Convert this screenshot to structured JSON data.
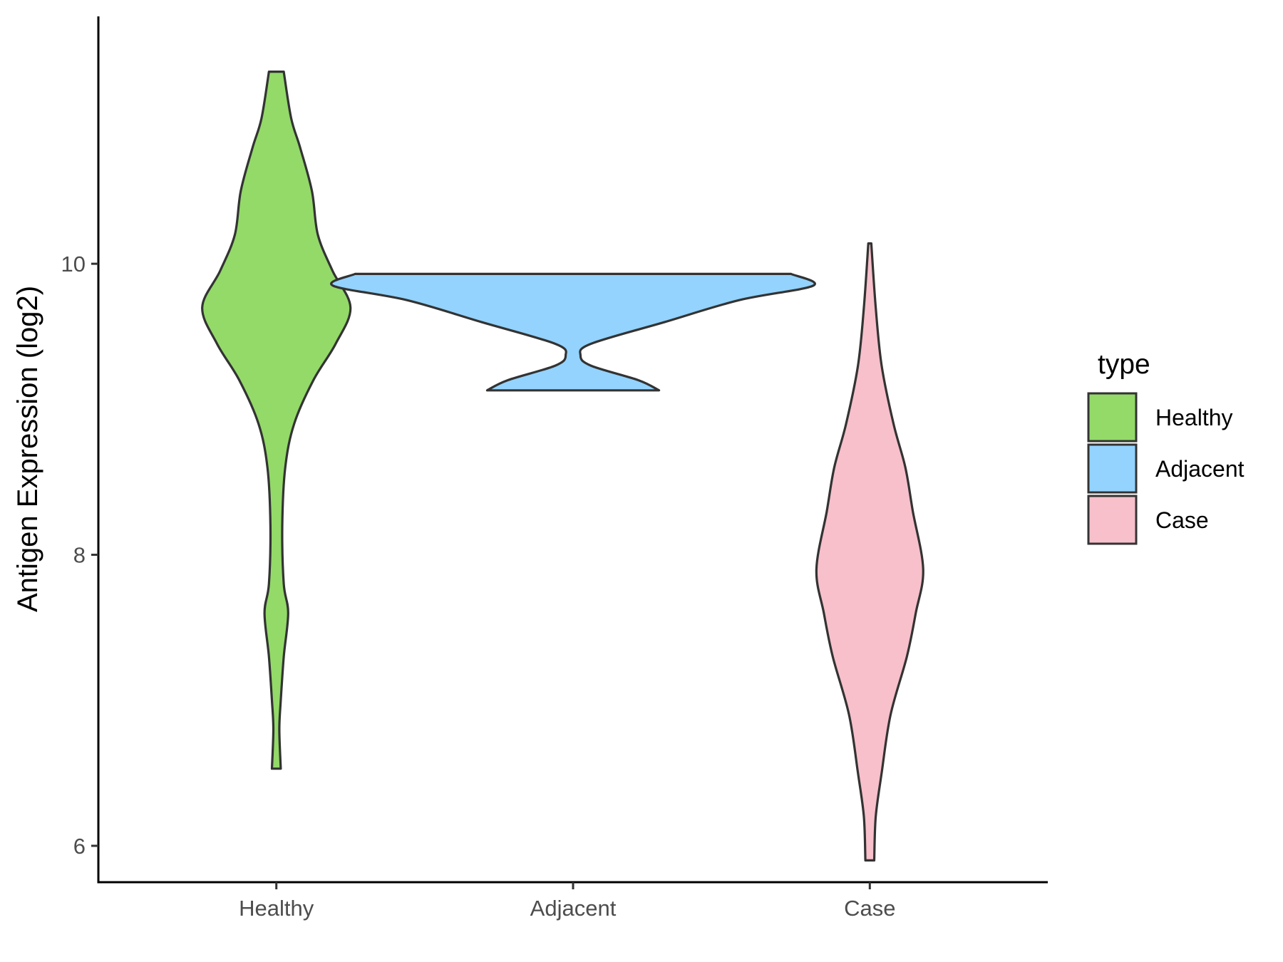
{
  "chart_data": {
    "type": "violin",
    "title": "",
    "xlabel": "",
    "ylabel": "Antigen Expression (log2)",
    "ylim": [
      5.75,
      11.7
    ],
    "yticks": [
      6,
      8,
      10
    ],
    "categories": [
      "Healthy",
      "Adjacent",
      "Case"
    ],
    "legend": {
      "title": "type",
      "position": "right",
      "entries": [
        "Healthy",
        "Adjacent",
        "Case"
      ]
    },
    "colors": {
      "Healthy": "#93DA69",
      "Adjacent": "#93D3FE",
      "Case": "#F7C0CB",
      "outline": "#333333"
    },
    "grid": false,
    "violins": [
      {
        "name": "Healthy",
        "min": 6.53,
        "max": 11.32,
        "profile": [
          [
            6.53,
            0.03
          ],
          [
            6.8,
            0.02
          ],
          [
            7.0,
            0.03
          ],
          [
            7.3,
            0.05
          ],
          [
            7.6,
            0.08
          ],
          [
            7.8,
            0.05
          ],
          [
            8.2,
            0.04
          ],
          [
            8.6,
            0.06
          ],
          [
            8.9,
            0.12
          ],
          [
            9.2,
            0.25
          ],
          [
            9.45,
            0.4
          ],
          [
            9.7,
            0.5
          ],
          [
            9.95,
            0.38
          ],
          [
            10.2,
            0.28
          ],
          [
            10.5,
            0.24
          ],
          [
            10.8,
            0.16
          ],
          [
            11.0,
            0.1
          ],
          [
            11.32,
            0.05
          ]
        ]
      },
      {
        "name": "Adjacent",
        "min": 9.13,
        "max": 9.93,
        "profile": [
          [
            9.13,
            0.58
          ],
          [
            9.2,
            0.44
          ],
          [
            9.3,
            0.12
          ],
          [
            9.37,
            0.05
          ],
          [
            9.45,
            0.12
          ],
          [
            9.6,
            0.62
          ],
          [
            9.75,
            1.12
          ],
          [
            9.85,
            1.62
          ],
          [
            9.93,
            1.47
          ]
        ]
      },
      {
        "name": "Case",
        "min": 5.9,
        "max": 10.14,
        "profile": [
          [
            5.9,
            0.03
          ],
          [
            6.2,
            0.04
          ],
          [
            6.5,
            0.08
          ],
          [
            6.9,
            0.14
          ],
          [
            7.3,
            0.25
          ],
          [
            7.6,
            0.31
          ],
          [
            7.9,
            0.36
          ],
          [
            8.3,
            0.29
          ],
          [
            8.6,
            0.24
          ],
          [
            8.9,
            0.16
          ],
          [
            9.3,
            0.08
          ],
          [
            9.7,
            0.04
          ],
          [
            10.14,
            0.01
          ]
        ]
      }
    ]
  }
}
